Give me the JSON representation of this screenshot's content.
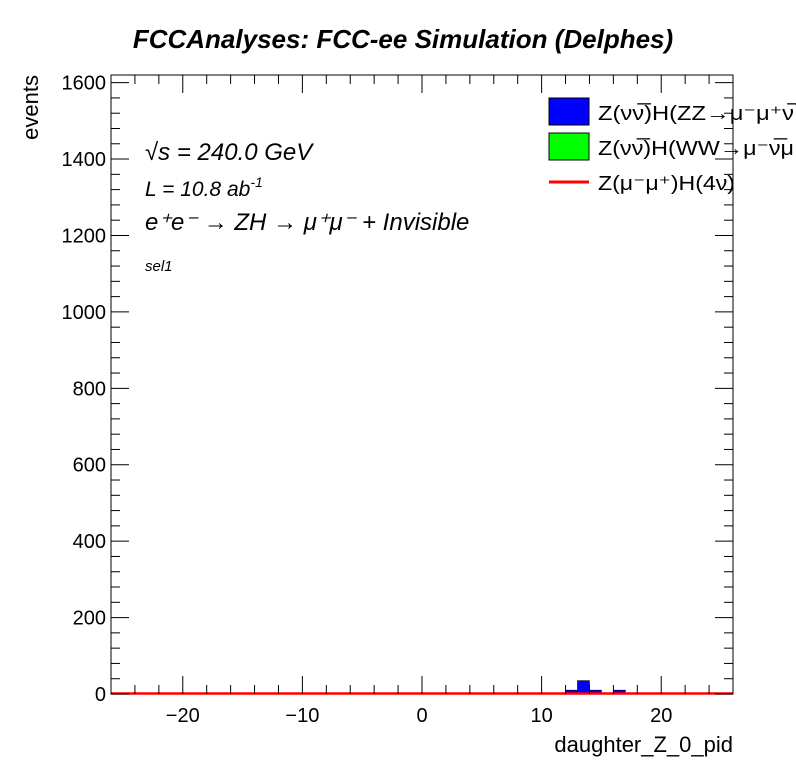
{
  "chart_data": {
    "type": "bar",
    "title": "FCCAnalyses: FCC-ee Simulation (Delphes)",
    "xlabel": "daughter_Z_0_pid",
    "ylabel": "events",
    "xlim": [
      -26,
      26
    ],
    "ylim": [
      0,
      1620
    ],
    "xticks": [
      -20,
      -10,
      0,
      10,
      20
    ],
    "xtick_labels": [
      "−20",
      "−10",
      "0",
      "10",
      "20"
    ],
    "yticks": [
      0,
      200,
      400,
      600,
      800,
      1000,
      1200,
      1400,
      1600
    ],
    "ytick_labels": [
      "0",
      "200",
      "400",
      "600",
      "800",
      "1000",
      "1200",
      "1400",
      "1600"
    ],
    "annotations": {
      "sqrt_s": "√s = 240.0 GeV",
      "lumi_base": "L = 10.8 ab",
      "lumi_exp": "-1",
      "process": "e⁺e⁻ → ZH → μ⁺μ⁻ + Invisible",
      "selection": "sel1"
    },
    "series": [
      {
        "name": "Z(νν̅)H(ZZ→μ⁻μ⁺ν̅",
        "style": "filled",
        "color": "#0000ff",
        "bins": [
          {
            "x0": 12,
            "x1": 13,
            "value": 10
          },
          {
            "x0": 13,
            "x1": 14,
            "value": 35
          },
          {
            "x0": 14,
            "x1": 15,
            "value": 10
          },
          {
            "x0": 16,
            "x1": 17,
            "value": 10
          }
        ]
      },
      {
        "name": "Z(νν̅)H(WW→μ⁻ν̅μ",
        "style": "filled",
        "color": "#00ff00",
        "bins": []
      },
      {
        "name": "Z(μ⁻μ⁺)H(4ν)",
        "style": "line",
        "color": "#ff0000",
        "bins": [
          {
            "x0": -26,
            "x1": 26,
            "value": 0
          }
        ]
      }
    ],
    "legend_position": "top-right"
  }
}
